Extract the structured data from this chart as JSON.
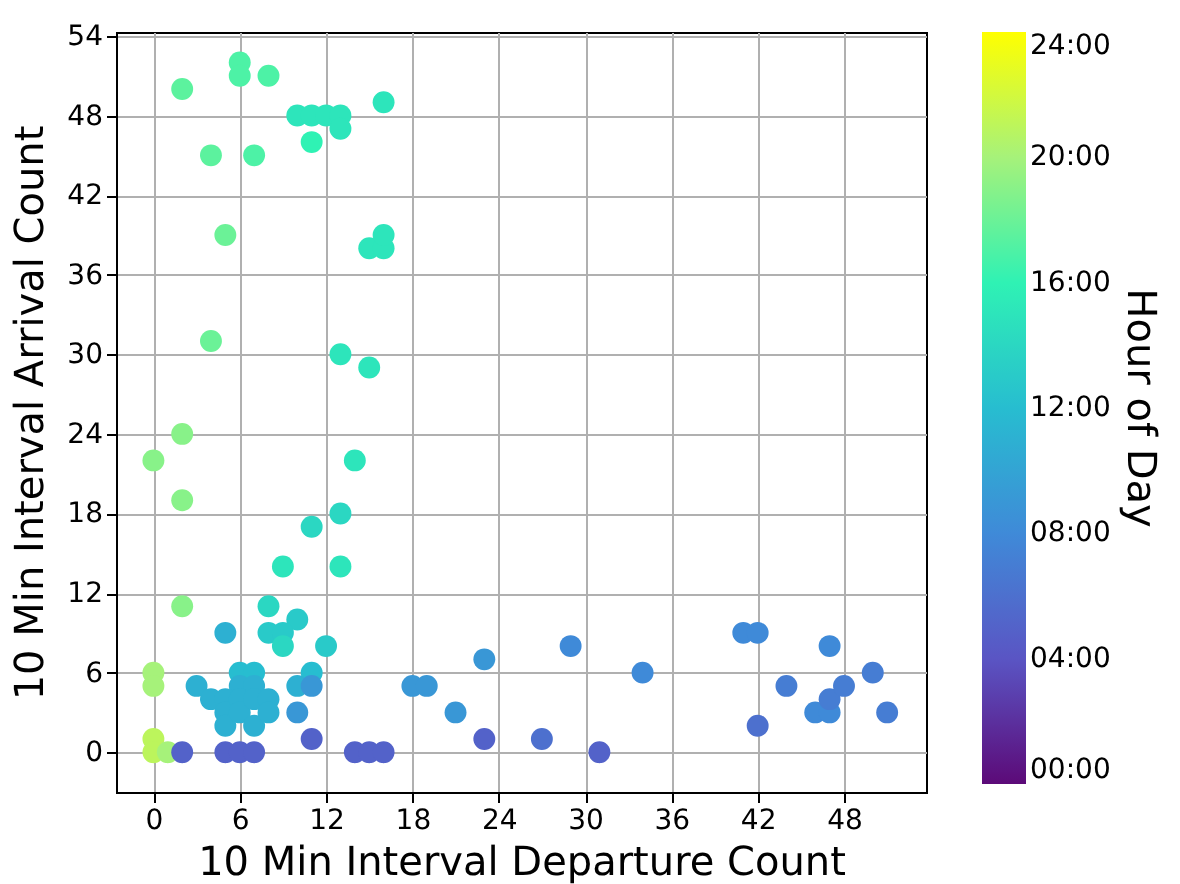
{
  "chart_data": {
    "type": "scatter",
    "xlabel": "10 Min Interval Departure Count",
    "ylabel": "10 Min Interval Arrival Count",
    "clabel": "Hour of Day",
    "x": [
      2,
      6,
      6,
      8,
      10,
      11,
      12,
      13,
      13,
      11,
      16,
      4,
      7,
      5,
      15,
      16,
      16,
      4,
      13,
      15,
      2,
      0,
      2,
      14,
      13,
      11,
      9,
      13,
      2,
      8,
      10,
      8,
      9,
      9,
      12,
      5,
      0,
      0,
      6,
      7,
      11,
      3,
      6,
      7,
      10,
      11,
      18,
      19,
      21,
      4,
      5,
      5,
      5,
      6,
      6,
      7,
      7,
      8,
      8,
      10,
      0,
      0,
      1,
      2,
      5,
      6,
      7,
      11,
      14,
      15,
      16,
      23,
      23,
      27,
      29,
      31,
      34,
      41,
      42,
      42,
      44,
      46,
      47,
      47,
      47,
      48,
      50,
      51
    ],
    "values": [
      50,
      52,
      51,
      51,
      48,
      48,
      48,
      48,
      47,
      46,
      49,
      45,
      45,
      39,
      38,
      38,
      39,
      31,
      30,
      29,
      24,
      22,
      19,
      22,
      18,
      17,
      14,
      14,
      11,
      11,
      10,
      9,
      9,
      8,
      8,
      9,
      6,
      5,
      6,
      6,
      6,
      5,
      5,
      5,
      5,
      5,
      5,
      5,
      3,
      4,
      4,
      3,
      2,
      4,
      3,
      2,
      4,
      4,
      3,
      3,
      1,
      0,
      0,
      0,
      0,
      0,
      0,
      1,
      0,
      0,
      0,
      7,
      1,
      1,
      8,
      0,
      6,
      9,
      9,
      2,
      5,
      3,
      3,
      4,
      8,
      5,
      6,
      3
    ],
    "cvalues": [
      17.5,
      17,
      17,
      17,
      15,
      15,
      15,
      15,
      15,
      16,
      15,
      17.5,
      17,
      18,
      15,
      15,
      15,
      18,
      15,
      15,
      19,
      19,
      19,
      15,
      14,
      14,
      15,
      15,
      19,
      14,
      13,
      13,
      13,
      14,
      13,
      11,
      20,
      20,
      12,
      12,
      12,
      11,
      11,
      11,
      11,
      9,
      9,
      9,
      9,
      11,
      11,
      11,
      11,
      11,
      11,
      11,
      11,
      11,
      11,
      9,
      21,
      21,
      20,
      5,
      5,
      5,
      5,
      5,
      5,
      5,
      5,
      9,
      5,
      6,
      8,
      5,
      8,
      8,
      8,
      6,
      7,
      8,
      8,
      7,
      8,
      7,
      7,
      7
    ],
    "xlim": [
      -2.6,
      53.7
    ],
    "ylim": [
      -3,
      54.3
    ],
    "xticks": [
      0,
      6,
      12,
      18,
      24,
      30,
      36,
      42,
      48
    ],
    "yticks": [
      0,
      6,
      12,
      18,
      24,
      30,
      36,
      42,
      48,
      54
    ],
    "clim": [
      0,
      24
    ],
    "cticks": [
      {
        "value": 0,
        "label": "00:00"
      },
      {
        "value": 4,
        "label": "04:00"
      },
      {
        "value": 8,
        "label": "08:00"
      },
      {
        "value": 12,
        "label": "12:00"
      },
      {
        "value": 16,
        "label": "16:00"
      },
      {
        "value": 20,
        "label": "20:00"
      },
      {
        "value": 24,
        "label": "24:00"
      }
    ],
    "grid": true,
    "marker": "circle"
  }
}
